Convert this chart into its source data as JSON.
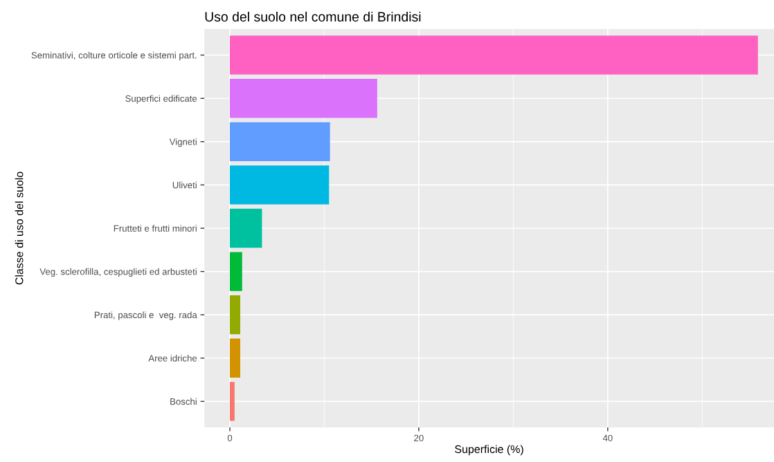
{
  "chart_data": {
    "type": "bar",
    "orientation": "horizontal",
    "title": "Uso del suolo nel comune di Brindisi",
    "xlabel": "Superficie (%)",
    "ylabel": "Classe di uso del suolo",
    "categories": [
      "Seminativi, colture orticole e sistemi part.",
      "Superfici edificate",
      "Vigneti",
      "Uliveti",
      "Frutteti e frutti minori",
      "Veg. sclerofilla, cespuglieti ed arbusteti",
      "Prati, pascoli e  veg. rada",
      "Aree idriche",
      "Boschi"
    ],
    "values": [
      55.9,
      15.6,
      10.6,
      10.5,
      3.4,
      1.3,
      1.1,
      1.1,
      0.5
    ],
    "colors": [
      "#ff61c3",
      "#db72fb",
      "#619cff",
      "#00b9e3",
      "#00c19f",
      "#00ba38",
      "#93aa00",
      "#d39200",
      "#f8766d"
    ],
    "xlim": [
      -2.7,
      57.6
    ],
    "xticks": [
      0,
      20,
      40
    ],
    "grid": true
  }
}
